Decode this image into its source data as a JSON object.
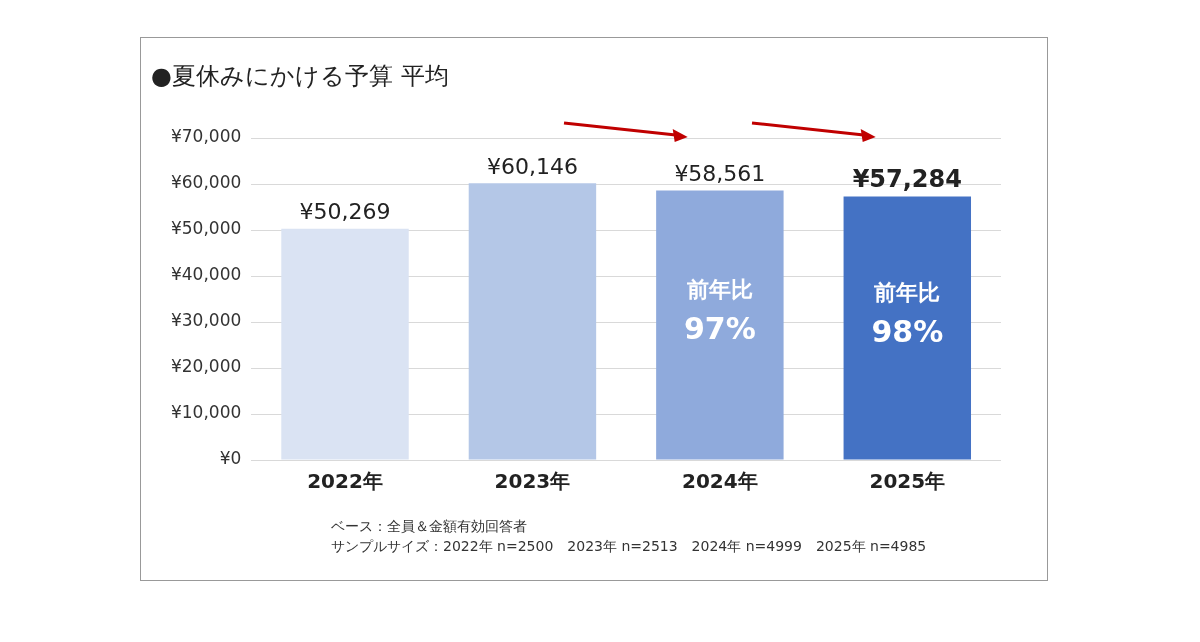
{
  "chart_data": {
    "type": "bar",
    "title": "●夏休みにかける予算 平均",
    "categories": [
      "2022年",
      "2023年",
      "2024年",
      "2025年"
    ],
    "values": [
      50269,
      60146,
      58561,
      57284
    ],
    "colors": [
      "#dae3f3",
      "#b4c7e7",
      "#8faadc",
      "#4472c4"
    ],
    "value_labels": [
      "¥50,269",
      "¥60,146",
      "¥58,561",
      "¥57,284"
    ],
    "ylim": [
      0,
      70000
    ],
    "yticks": [
      {
        "value": 0,
        "label": "¥0"
      },
      {
        "value": 10000,
        "label": "¥10,000"
      },
      {
        "value": 20000,
        "label": "¥20,000"
      },
      {
        "value": 30000,
        "label": "¥30,000"
      },
      {
        "value": 40000,
        "label": "¥40,000"
      },
      {
        "value": 50000,
        "label": "¥50,000"
      },
      {
        "value": 60000,
        "label": "¥60,000"
      },
      {
        "value": 70000,
        "label": "¥70,000"
      }
    ],
    "grid": "y",
    "legend": false,
    "annotations": [
      "前年比 97%",
      "前年比 98%",
      "ベース：全員＆金額有効回答者",
      "サンプルサイズ：2022年 n=2500　2023年 n=2513　2024年 n=4999　2025年 n=4985"
    ]
  }
}
